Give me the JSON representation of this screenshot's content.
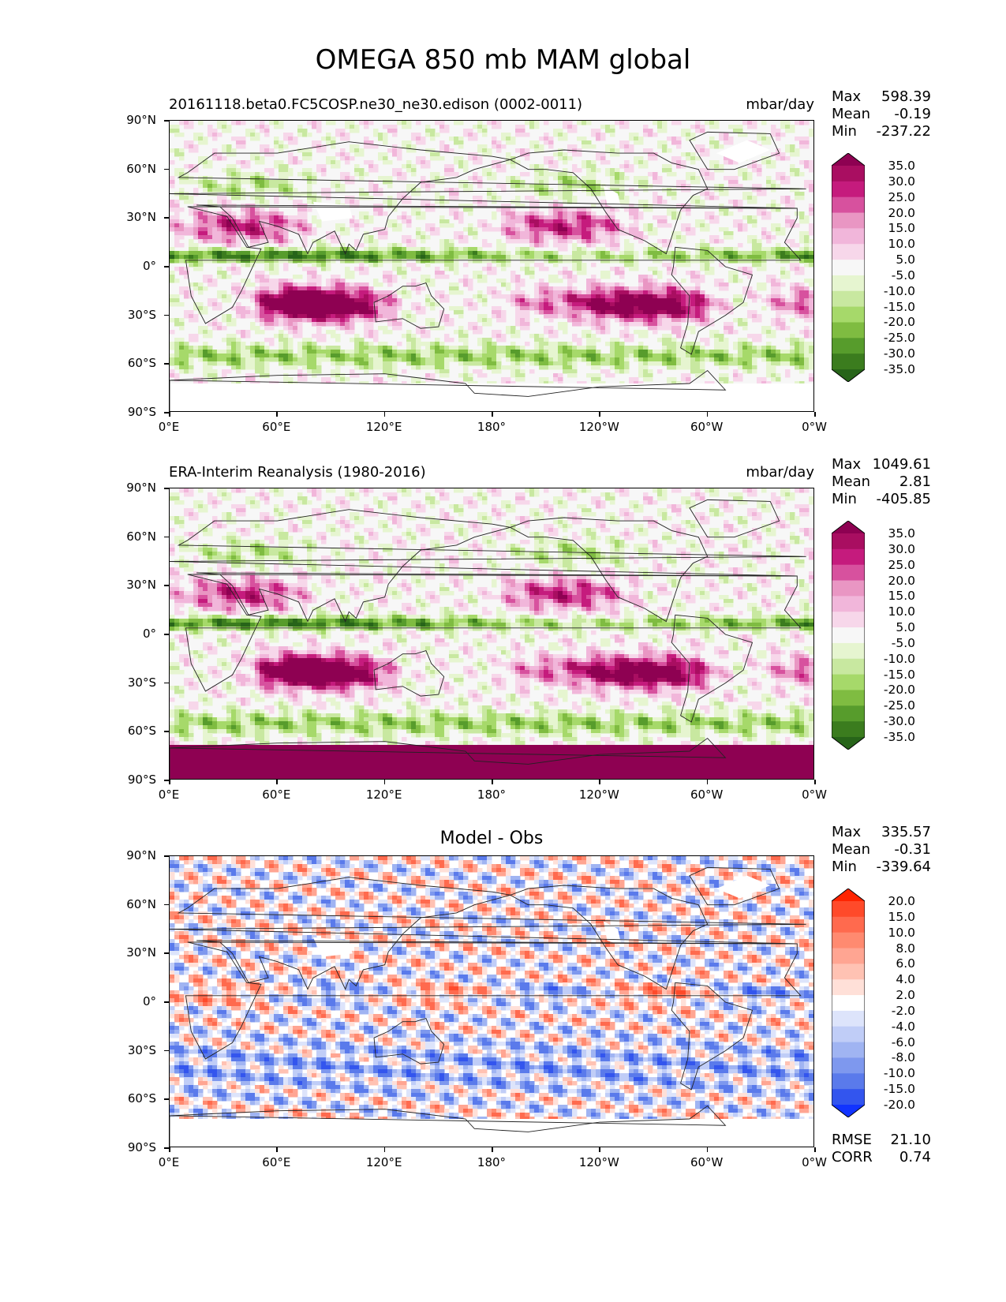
{
  "figure_title": "OMEGA 850 mb MAM global",
  "yticks": [
    "90°N",
    "60°N",
    "30°N",
    "0°",
    "30°S",
    "60°S",
    "90°S"
  ],
  "xticks": [
    "0°E",
    "60°E",
    "120°E",
    "180°",
    "120°W",
    "60°W",
    "0°W"
  ],
  "panels": [
    {
      "left_title": "20161118.beta0.FC5COSP.ne30_ne30.edison (0002-0011)",
      "center_title": "",
      "units": "mbar/day",
      "stats": {
        "max_label": "Max",
        "max": "598.39",
        "mean_label": "Mean",
        "mean": "-0.19",
        "min_label": "Min",
        "min": "-237.22"
      },
      "colorbar": {
        "labels": [
          "35.0",
          "30.0",
          "25.0",
          "20.0",
          "15.0",
          "10.0",
          "5.0",
          "-5.0",
          "-10.0",
          "-15.0",
          "-20.0",
          "-25.0",
          "-30.0",
          "-35.0"
        ],
        "colors": [
          "#8e0152",
          "#a90e61",
          "#c51b7d",
          "#d7519e",
          "#e996c3",
          "#f1b6da",
          "#f7d7ea",
          "#f7f7f7",
          "#e6f5d0",
          "#c8e8a0",
          "#a6d96a",
          "#7fbc41",
          "#579c2c",
          "#3b7c1e",
          "#276419"
        ]
      }
    },
    {
      "left_title": "ERA-Interim Reanalysis (1980-2016)",
      "center_title": "",
      "units": "mbar/day",
      "stats": {
        "max_label": "Max",
        "max": "1049.61",
        "mean_label": "Mean",
        "mean": "2.81",
        "min_label": "Min",
        "min": "-405.85"
      },
      "colorbar": {
        "labels": [
          "35.0",
          "30.0",
          "25.0",
          "20.0",
          "15.0",
          "10.0",
          "5.0",
          "-5.0",
          "-10.0",
          "-15.0",
          "-20.0",
          "-25.0",
          "-30.0",
          "-35.0"
        ],
        "colors": [
          "#8e0152",
          "#a90e61",
          "#c51b7d",
          "#d7519e",
          "#e996c3",
          "#f1b6da",
          "#f7d7ea",
          "#f7f7f7",
          "#e6f5d0",
          "#c8e8a0",
          "#a6d96a",
          "#7fbc41",
          "#579c2c",
          "#3b7c1e",
          "#276419"
        ]
      }
    },
    {
      "left_title": "",
      "center_title": "Model - Obs",
      "units": "",
      "stats": {
        "max_label": "Max",
        "max": "335.57",
        "mean_label": "Mean",
        "mean": "-0.31",
        "min_label": "Min",
        "min": "-339.64"
      },
      "extra_stats": {
        "rmse_label": "RMSE",
        "rmse": "21.10",
        "corr_label": "CORR",
        "corr": "0.74"
      },
      "colorbar": {
        "labels": [
          "20.0",
          "15.0",
          "10.0",
          "8.0",
          "6.0",
          "4.0",
          "2.0",
          "-2.0",
          "-4.0",
          "-6.0",
          "-8.0",
          "-10.0",
          "-15.0",
          "-20.0"
        ],
        "colors": [
          "#ff2400",
          "#ff4a2a",
          "#ff6a4e",
          "#ff8a70",
          "#ffa592",
          "#ffc2b3",
          "#ffe0d8",
          "#ffffff",
          "#dde4fb",
          "#c0cdf7",
          "#a0b4f2",
          "#7e98ee",
          "#5a7aeb",
          "#3355ee",
          "#1133ff"
        ]
      }
    }
  ]
}
